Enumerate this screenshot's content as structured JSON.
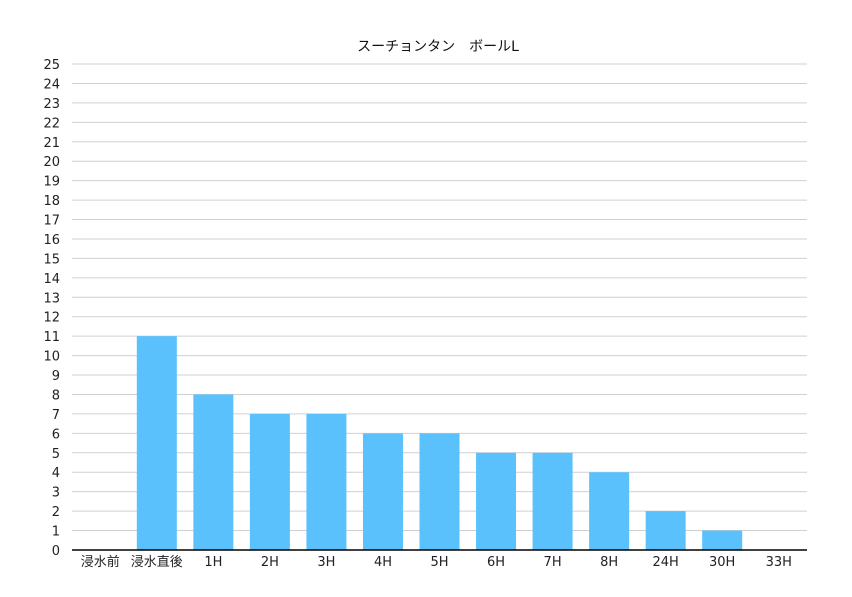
{
  "chart_data": {
    "type": "bar",
    "title": "スーチョンタン　ボールL",
    "xlabel": "",
    "ylabel": "",
    "categories": [
      "浸水前",
      "浸水直後",
      "1H",
      "2H",
      "3H",
      "4H",
      "5H",
      "6H",
      "7H",
      "8H",
      "24H",
      "30H",
      "33H"
    ],
    "values": [
      0,
      11,
      8,
      7,
      7,
      6,
      6,
      5,
      5,
      4,
      2,
      1,
      0
    ],
    "ylim": [
      0,
      25
    ],
    "yticks": [
      0,
      1,
      2,
      3,
      4,
      5,
      6,
      7,
      8,
      9,
      10,
      11,
      12,
      13,
      14,
      15,
      16,
      17,
      18,
      19,
      20,
      21,
      22,
      23,
      24,
      25
    ],
    "grid": true,
    "legend": "none",
    "bar_color": "#5ac1fd"
  }
}
